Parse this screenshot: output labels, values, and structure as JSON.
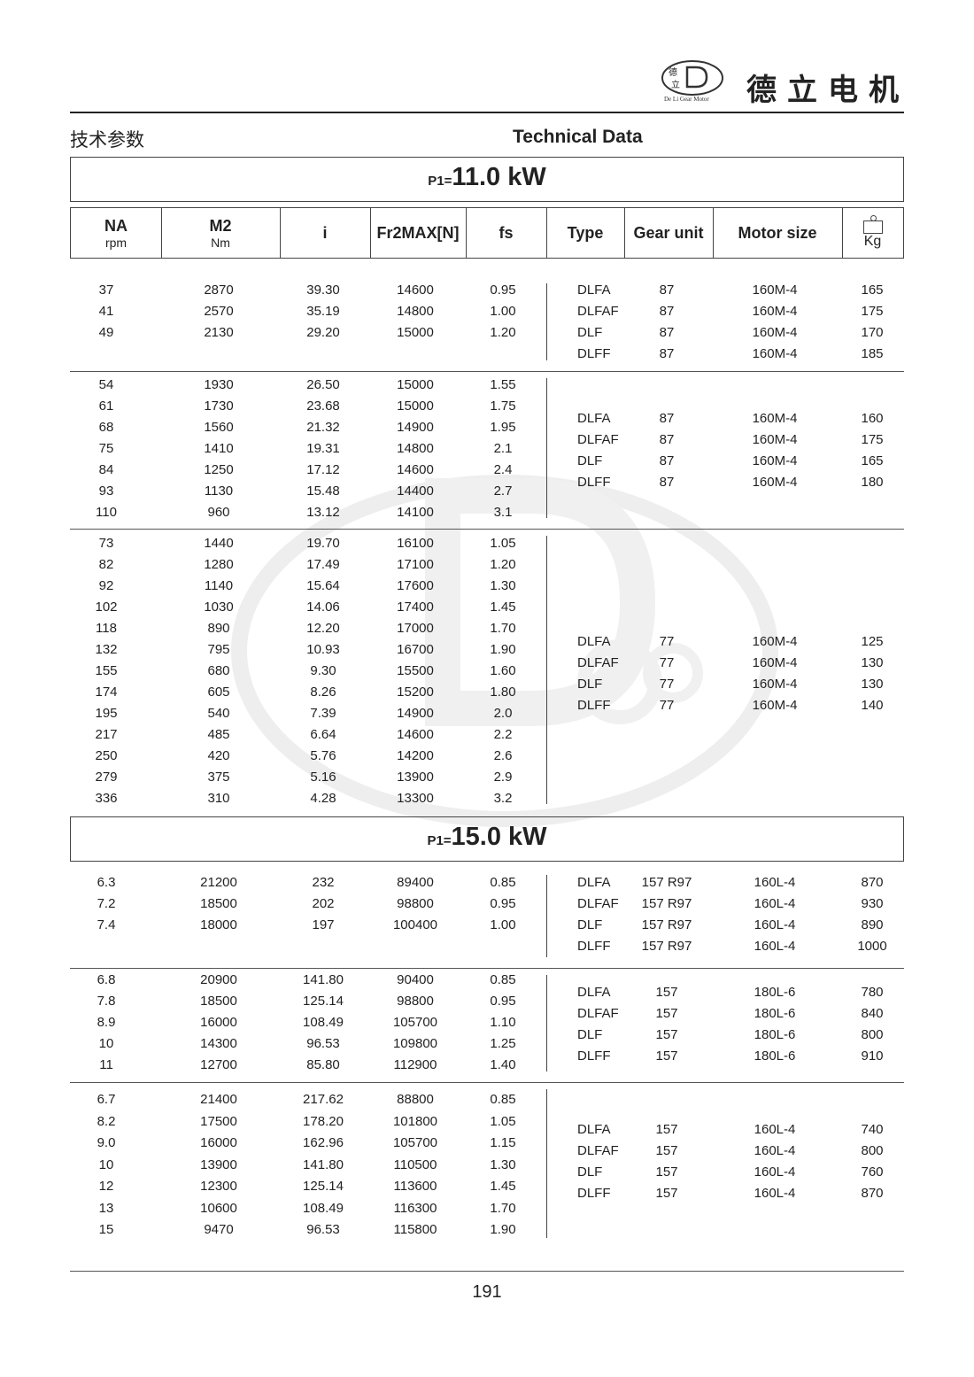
{
  "header": {
    "brand_cn": "德立电机",
    "logo_text": "De Li Gear Motor",
    "logo_cn": "德立",
    "title_cn": "技术参数",
    "title_en": "Technical Data"
  },
  "columns": {
    "na": "NA",
    "na_unit": "rpm",
    "m2": "M2",
    "m2_unit": "Nm",
    "i": "i",
    "fr": "Fr2MAX[N]",
    "fs": "fs",
    "type": "Type",
    "gear_unit": "Gear unit",
    "motor_size": "Motor size",
    "kg": "Kg",
    "kg_icon": "weight-icon"
  },
  "sections": [
    {
      "power_prefix": "P1=",
      "power": "11.0 kW",
      "groups": [
        {
          "rows": [
            [
              "37",
              "2870",
              "39.30",
              "14600",
              "0.95"
            ],
            [
              "41",
              "2570",
              "35.19",
              "14800",
              "1.00"
            ],
            [
              "49",
              "2130",
              "29.20",
              "15000",
              "1.20"
            ]
          ],
          "types": [
            [
              "DLFA",
              "87",
              "160M-4",
              "165"
            ],
            [
              "DLFAF",
              "87",
              "160M-4",
              "175"
            ],
            [
              "DLF",
              "87",
              "160M-4",
              "170"
            ],
            [
              "DLFF",
              "87",
              "160M-4",
              "185"
            ]
          ]
        },
        {
          "rows": [
            [
              "54",
              "1930",
              "26.50",
              "15000",
              "1.55"
            ],
            [
              "61",
              "1730",
              "23.68",
              "15000",
              "1.75"
            ],
            [
              "68",
              "1560",
              "21.32",
              "14900",
              "1.95"
            ],
            [
              "75",
              "1410",
              "19.31",
              "14800",
              "2.1"
            ],
            [
              "84",
              "1250",
              "17.12",
              "14600",
              "2.4"
            ],
            [
              "93",
              "1130",
              "15.48",
              "14400",
              "2.7"
            ],
            [
              "110",
              "960",
              "13.12",
              "14100",
              "3.1"
            ]
          ],
          "types": [
            [
              "DLFA",
              "87",
              "160M-4",
              "160"
            ],
            [
              "DLFAF",
              "87",
              "160M-4",
              "175"
            ],
            [
              "DLF",
              "87",
              "160M-4",
              "165"
            ],
            [
              "DLFF",
              "87",
              "160M-4",
              "180"
            ]
          ]
        },
        {
          "rows": [
            [
              "73",
              "1440",
              "19.70",
              "16100",
              "1.05"
            ],
            [
              "82",
              "1280",
              "17.49",
              "17100",
              "1.20"
            ],
            [
              "92",
              "1140",
              "15.64",
              "17600",
              "1.30"
            ],
            [
              "102",
              "1030",
              "14.06",
              "17400",
              "1.45"
            ],
            [
              "118",
              "890",
              "12.20",
              "17000",
              "1.70"
            ],
            [
              "132",
              "795",
              "10.93",
              "16700",
              "1.90"
            ],
            [
              "155",
              "680",
              "9.30",
              "15500",
              "1.60"
            ],
            [
              "174",
              "605",
              "8.26",
              "15200",
              "1.80"
            ],
            [
              "195",
              "540",
              "7.39",
              "14900",
              "2.0"
            ],
            [
              "217",
              "485",
              "6.64",
              "14600",
              "2.2"
            ],
            [
              "250",
              "420",
              "5.76",
              "14200",
              "2.6"
            ],
            [
              "279",
              "375",
              "5.16",
              "13900",
              "2.9"
            ],
            [
              "336",
              "310",
              "4.28",
              "13300",
              "3.2"
            ]
          ],
          "types": [
            [
              "DLFA",
              "77",
              "160M-4",
              "125"
            ],
            [
              "DLFAF",
              "77",
              "160M-4",
              "130"
            ],
            [
              "DLF",
              "77",
              "160M-4",
              "130"
            ],
            [
              "DLFF",
              "77",
              "160M-4",
              "140"
            ]
          ]
        }
      ]
    },
    {
      "power_prefix": "P1=",
      "power": "15.0 kW",
      "groups": [
        {
          "rows": [
            [
              "6.3",
              "21200",
              "232",
              "89400",
              "0.85"
            ],
            [
              "7.2",
              "18500",
              "202",
              "98800",
              "0.95"
            ],
            [
              "7.4",
              "18000",
              "197",
              "100400",
              "1.00"
            ]
          ],
          "types": [
            [
              "DLFA",
              "157 R97",
              "160L-4",
              "870"
            ],
            [
              "DLFAF",
              "157 R97",
              "160L-4",
              "930"
            ],
            [
              "DLF",
              "157 R97",
              "160L-4",
              "890"
            ],
            [
              "DLFF",
              "157 R97",
              "160L-4",
              "1000"
            ]
          ]
        },
        {
          "rows": [
            [
              "6.8",
              "20900",
              "141.80",
              "90400",
              "0.85"
            ],
            [
              "7.8",
              "18500",
              "125.14",
              "98800",
              "0.95"
            ],
            [
              "8.9",
              "16000",
              "108.49",
              "105700",
              "1.10"
            ],
            [
              "10",
              "14300",
              "96.53",
              "109800",
              "1.25"
            ],
            [
              "11",
              "12700",
              "85.80",
              "112900",
              "1.40"
            ]
          ],
          "types": [
            [
              "DLFA",
              "157",
              "180L-6",
              "780"
            ],
            [
              "DLFAF",
              "157",
              "180L-6",
              "840"
            ],
            [
              "DLF",
              "157",
              "180L-6",
              "800"
            ],
            [
              "DLFF",
              "157",
              "180L-6",
              "910"
            ]
          ]
        },
        {
          "rows": [
            [
              "6.7",
              "21400",
              "217.62",
              "88800",
              "0.85"
            ],
            [
              "8.2",
              "17500",
              "178.20",
              "101800",
              "1.05"
            ],
            [
              "9.0",
              "16000",
              "162.96",
              "105700",
              "1.15"
            ],
            [
              "10",
              "13900",
              "141.80",
              "110500",
              "1.30"
            ],
            [
              "12",
              "12300",
              "125.14",
              "113600",
              "1.45"
            ],
            [
              "13",
              "10600",
              "108.49",
              "116300",
              "1.70"
            ],
            [
              "15",
              "9470",
              "96.53",
              "115800",
              "1.90"
            ]
          ],
          "types": [
            [
              "DLFA",
              "157",
              "160L-4",
              "740"
            ],
            [
              "DLFAF",
              "157",
              "160L-4",
              "800"
            ],
            [
              "DLF",
              "157",
              "160L-4",
              "760"
            ],
            [
              "DLFF",
              "157",
              "160L-4",
              "870"
            ]
          ]
        }
      ]
    }
  ],
  "footer": {
    "page_number": "191"
  }
}
